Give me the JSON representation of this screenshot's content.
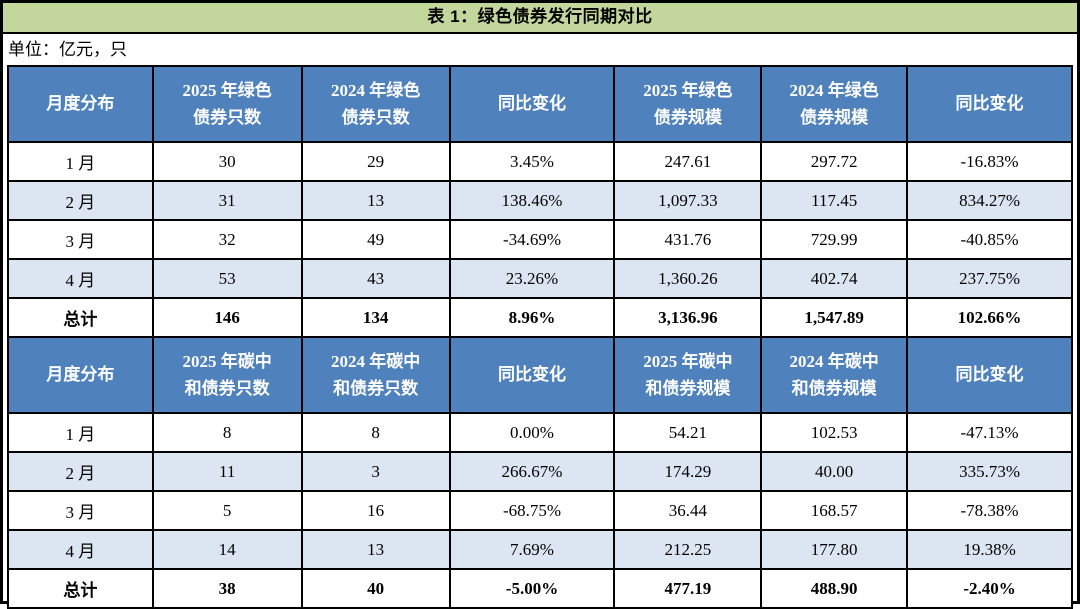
{
  "title": "表 1：绿色债券发行同期对比",
  "unit_note": "单位：亿元，只",
  "colors": {
    "title_bg": "#c3d69b",
    "header_bg": "#4f81bd",
    "header_text": "#ffffff",
    "stripe_bg": "#dce6f2",
    "border": "#000000",
    "text": "#000000"
  },
  "sections": [
    {
      "name": "green-bonds",
      "columns": [
        "月度分布",
        "2025 年绿色\n债券只数",
        "2024 年绿色\n债券只数",
        "同比变化",
        "2025 年绿色\n债券规模",
        "2024 年绿色\n债券规模",
        "同比变化"
      ],
      "rows": [
        [
          "1 月",
          "30",
          "29",
          "3.45%",
          "247.61",
          "297.72",
          "-16.83%"
        ],
        [
          "2 月",
          "31",
          "13",
          "138.46%",
          "1,097.33",
          "117.45",
          "834.27%"
        ],
        [
          "3 月",
          "32",
          "49",
          "-34.69%",
          "431.76",
          "729.99",
          "-40.85%"
        ],
        [
          "4 月",
          "53",
          "43",
          "23.26%",
          "1,360.26",
          "402.74",
          "237.75%"
        ]
      ],
      "total": [
        "总计",
        "146",
        "134",
        "8.96%",
        "3,136.96",
        "1,547.89",
        "102.66%"
      ]
    },
    {
      "name": "carbon-neutral-bonds",
      "columns": [
        "月度分布",
        "2025 年碳中\n和债券只数",
        "2024 年碳中\n和债券只数",
        "同比变化",
        "2025 年碳中\n和债券规模",
        "2024 年碳中\n和债券规模",
        "同比变化"
      ],
      "rows": [
        [
          "1 月",
          "8",
          "8",
          "0.00%",
          "54.21",
          "102.53",
          "-47.13%"
        ],
        [
          "2 月",
          "11",
          "3",
          "266.67%",
          "174.29",
          "40.00",
          "335.73%"
        ],
        [
          "3 月",
          "5",
          "16",
          "-68.75%",
          "36.44",
          "168.57",
          "-78.38%"
        ],
        [
          "4 月",
          "14",
          "13",
          "7.69%",
          "212.25",
          "177.80",
          "19.38%"
        ]
      ],
      "total": [
        "总计",
        "38",
        "40",
        "-5.00%",
        "477.19",
        "488.90",
        "-2.40%"
      ]
    }
  ]
}
